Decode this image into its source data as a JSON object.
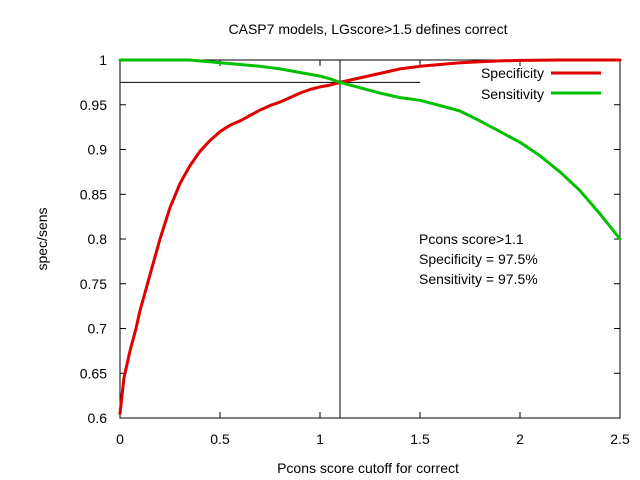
{
  "chart_data": {
    "type": "line",
    "title": "CASP7 models, LGscore>1.5 defines correct",
    "xlabel": "Pcons score cutoff for correct",
    "ylabel": "spec/sens",
    "xlim": [
      0,
      2.5
    ],
    "ylim": [
      0.6,
      1.0
    ],
    "x_ticks": [
      0,
      0.5,
      1,
      1.5,
      2,
      2.5
    ],
    "x_tick_labels": [
      "0",
      "0.5",
      "1",
      "1.5",
      "2",
      "2.5"
    ],
    "y_ticks": [
      0.6,
      0.65,
      0.7,
      0.75,
      0.8,
      0.85,
      0.9,
      0.95,
      1.0
    ],
    "y_tick_labels": [
      "0.6",
      "0.65",
      "0.7",
      "0.75",
      "0.8",
      "0.85",
      "0.9",
      "0.95",
      "1"
    ],
    "grid": false,
    "legend_position": "top-right",
    "series": [
      {
        "name": "Specificity",
        "color": "#e00000",
        "x": [
          0,
          0.02,
          0.05,
          0.08,
          0.1,
          0.15,
          0.2,
          0.25,
          0.3,
          0.35,
          0.4,
          0.45,
          0.5,
          0.55,
          0.6,
          0.65,
          0.7,
          0.75,
          0.8,
          0.85,
          0.9,
          0.95,
          1.0,
          1.05,
          1.1,
          1.2,
          1.3,
          1.4,
          1.5,
          1.6,
          1.7,
          1.8,
          1.9,
          2.0,
          2.2,
          2.4,
          2.5
        ],
        "values": [
          0.605,
          0.645,
          0.675,
          0.7,
          0.72,
          0.76,
          0.8,
          0.835,
          0.862,
          0.882,
          0.898,
          0.91,
          0.92,
          0.927,
          0.932,
          0.938,
          0.944,
          0.949,
          0.953,
          0.958,
          0.963,
          0.967,
          0.97,
          0.972,
          0.975,
          0.98,
          0.985,
          0.99,
          0.993,
          0.995,
          0.997,
          0.998,
          0.999,
          0.9995,
          1.0,
          1.0,
          1.0
        ]
      },
      {
        "name": "Sensitivity",
        "color": "#00c000",
        "x": [
          0,
          0.2,
          0.35,
          0.5,
          0.6,
          0.7,
          0.8,
          0.9,
          1.0,
          1.05,
          1.1,
          1.2,
          1.3,
          1.4,
          1.5,
          1.6,
          1.7,
          1.8,
          1.9,
          2.0,
          2.1,
          2.2,
          2.3,
          2.4,
          2.5
        ],
        "values": [
          1.0,
          1.0,
          1.0,
          0.997,
          0.995,
          0.993,
          0.99,
          0.986,
          0.982,
          0.979,
          0.975,
          0.969,
          0.963,
          0.958,
          0.955,
          0.949,
          0.943,
          0.932,
          0.92,
          0.908,
          0.893,
          0.875,
          0.854,
          0.828,
          0.8
        ]
      }
    ],
    "reference_lines": {
      "x": 1.1,
      "y": 0.975
    },
    "annotation": [
      "Pcons score>1.1",
      "Specificity = 97.5%",
      "Sensitivity = 97.5%"
    ]
  }
}
